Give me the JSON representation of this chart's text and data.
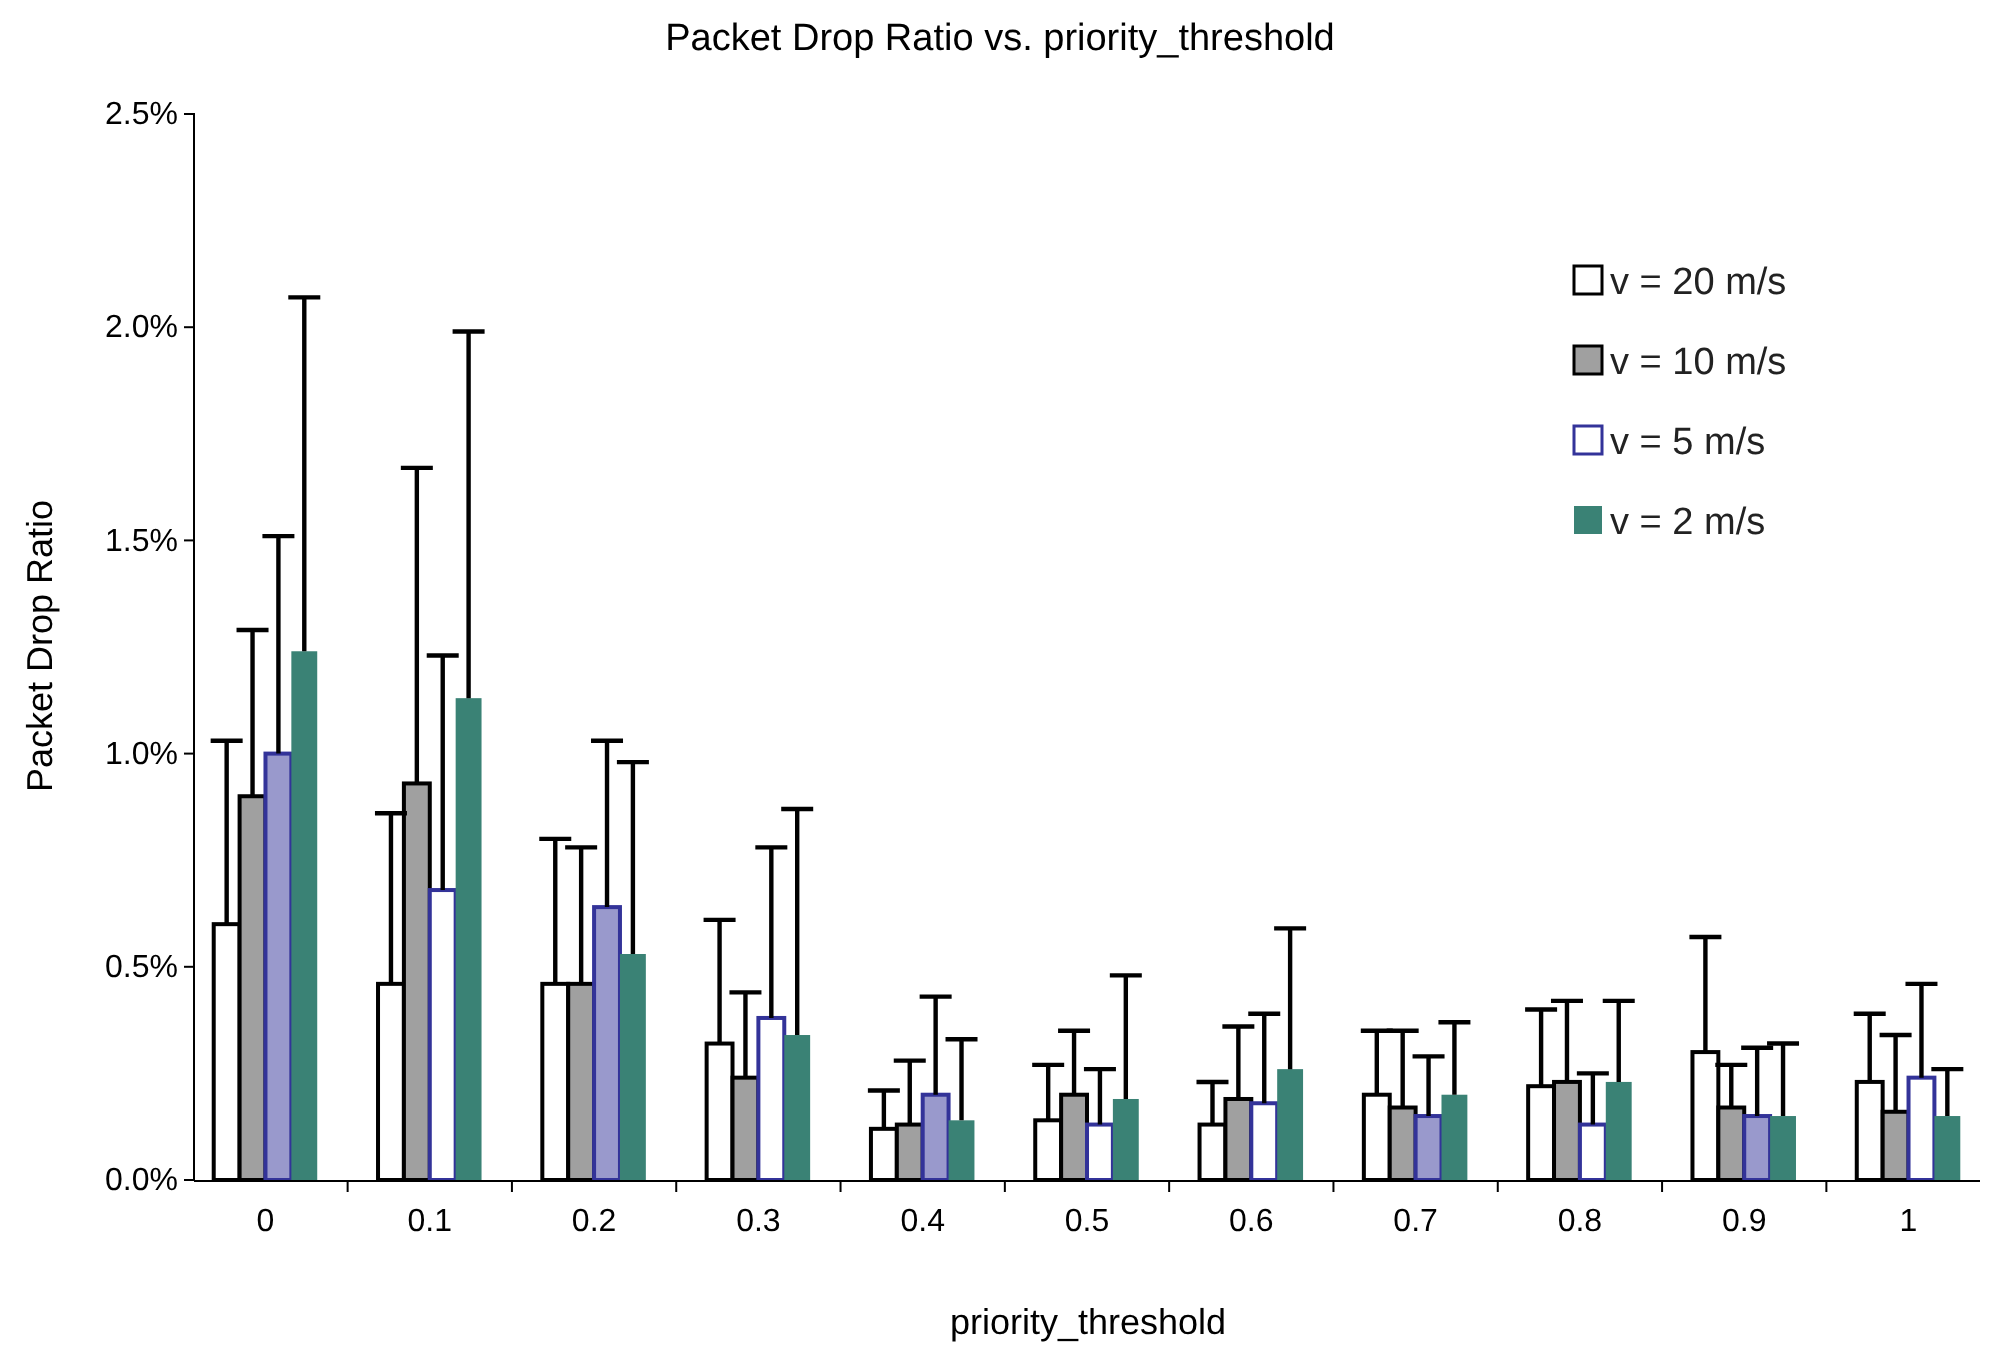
{
  "chart_data": {
    "type": "bar",
    "title": "Packet Drop Ratio vs. priority_threshold",
    "xlabel": "priority_threshold",
    "ylabel": "Packet Drop Ratio",
    "categories": [
      "0",
      "0.1",
      "0.2",
      "0.3",
      "0.4",
      "0.5",
      "0.6",
      "0.7",
      "0.8",
      "0.9",
      "1"
    ],
    "series": [
      {
        "name": "v = 20 m/s",
        "color": "#ffffff",
        "values": [
          0.6,
          0.46,
          0.46,
          0.32,
          0.12,
          0.14,
          0.13,
          0.2,
          0.22,
          0.3,
          0.23
        ],
        "errors": [
          [
            0.6,
            1.03
          ],
          [
            0.46,
            0.86
          ],
          [
            0.46,
            0.8
          ],
          [
            0.32,
            0.61
          ],
          [
            0.12,
            0.21
          ],
          [
            0.14,
            0.27
          ],
          [
            0.13,
            0.23
          ],
          [
            0.2,
            0.35
          ],
          [
            0.22,
            0.4
          ],
          [
            0.3,
            0.57
          ],
          [
            0.23,
            0.39
          ]
        ]
      },
      {
        "name": "v = 10 m/s",
        "color": "#a0a0a0",
        "values": [
          0.9,
          0.93,
          0.46,
          0.24,
          0.13,
          0.2,
          0.19,
          0.17,
          0.23,
          0.17,
          0.16
        ],
        "errors": [
          [
            0.9,
            1.29
          ],
          [
            0.93,
            1.67
          ],
          [
            0.46,
            0.78
          ],
          [
            0.24,
            0.44
          ],
          [
            0.13,
            0.28
          ],
          [
            0.2,
            0.35
          ],
          [
            0.19,
            0.36
          ],
          [
            0.17,
            0.35
          ],
          [
            0.23,
            0.42
          ],
          [
            0.17,
            0.27
          ],
          [
            0.16,
            0.34
          ]
        ]
      },
      {
        "name": "v = 5 m/s",
        "color": "#333399",
        "colors": [
          "#9999cc",
          "#ffffff",
          "#9999cc",
          "#ffffff",
          "#9999cc",
          "#ffffff",
          "#ffffff",
          "#9999cc",
          "#ffffff",
          "#9999cc",
          "#ffffff"
        ],
        "values": [
          1.0,
          0.68,
          0.64,
          0.38,
          0.2,
          0.13,
          0.18,
          0.15,
          0.13,
          0.15,
          0.24
        ],
        "errors": [
          [
            1.0,
            1.51
          ],
          [
            0.68,
            1.23
          ],
          [
            0.64,
            1.03
          ],
          [
            0.38,
            0.78
          ],
          [
            0.2,
            0.43
          ],
          [
            0.13,
            0.26
          ],
          [
            0.18,
            0.39
          ],
          [
            0.15,
            0.29
          ],
          [
            0.13,
            0.25
          ],
          [
            0.15,
            0.31
          ],
          [
            0.24,
            0.46
          ]
        ]
      },
      {
        "name": "v = 2 m/s",
        "color": "#3a8275",
        "values": [
          1.24,
          1.13,
          0.53,
          0.34,
          0.14,
          0.19,
          0.26,
          0.2,
          0.23,
          0.15,
          0.15
        ],
        "errors": [
          [
            1.24,
            2.07
          ],
          [
            1.13,
            1.99
          ],
          [
            0.53,
            0.98
          ],
          [
            0.34,
            0.87
          ],
          [
            0.14,
            0.33
          ],
          [
            0.19,
            0.48
          ],
          [
            0.26,
            0.59
          ],
          [
            0.2,
            0.37
          ],
          [
            0.23,
            0.42
          ],
          [
            0.15,
            0.32
          ],
          [
            0.15,
            0.26
          ]
        ]
      }
    ],
    "ylim": [
      0,
      2.5
    ],
    "yticks": [
      {
        "value": 0,
        "label": "0.0%"
      },
      {
        "value": 0.5,
        "label": "0.5%"
      },
      {
        "value": 1,
        "label": "1.0%"
      },
      {
        "value": 1.5,
        "label": "1.5%"
      },
      {
        "value": 2,
        "label": "2.0%"
      },
      {
        "value": 2.5,
        "label": "2.5%"
      }
    ],
    "legend": "top right",
    "grid": false
  }
}
